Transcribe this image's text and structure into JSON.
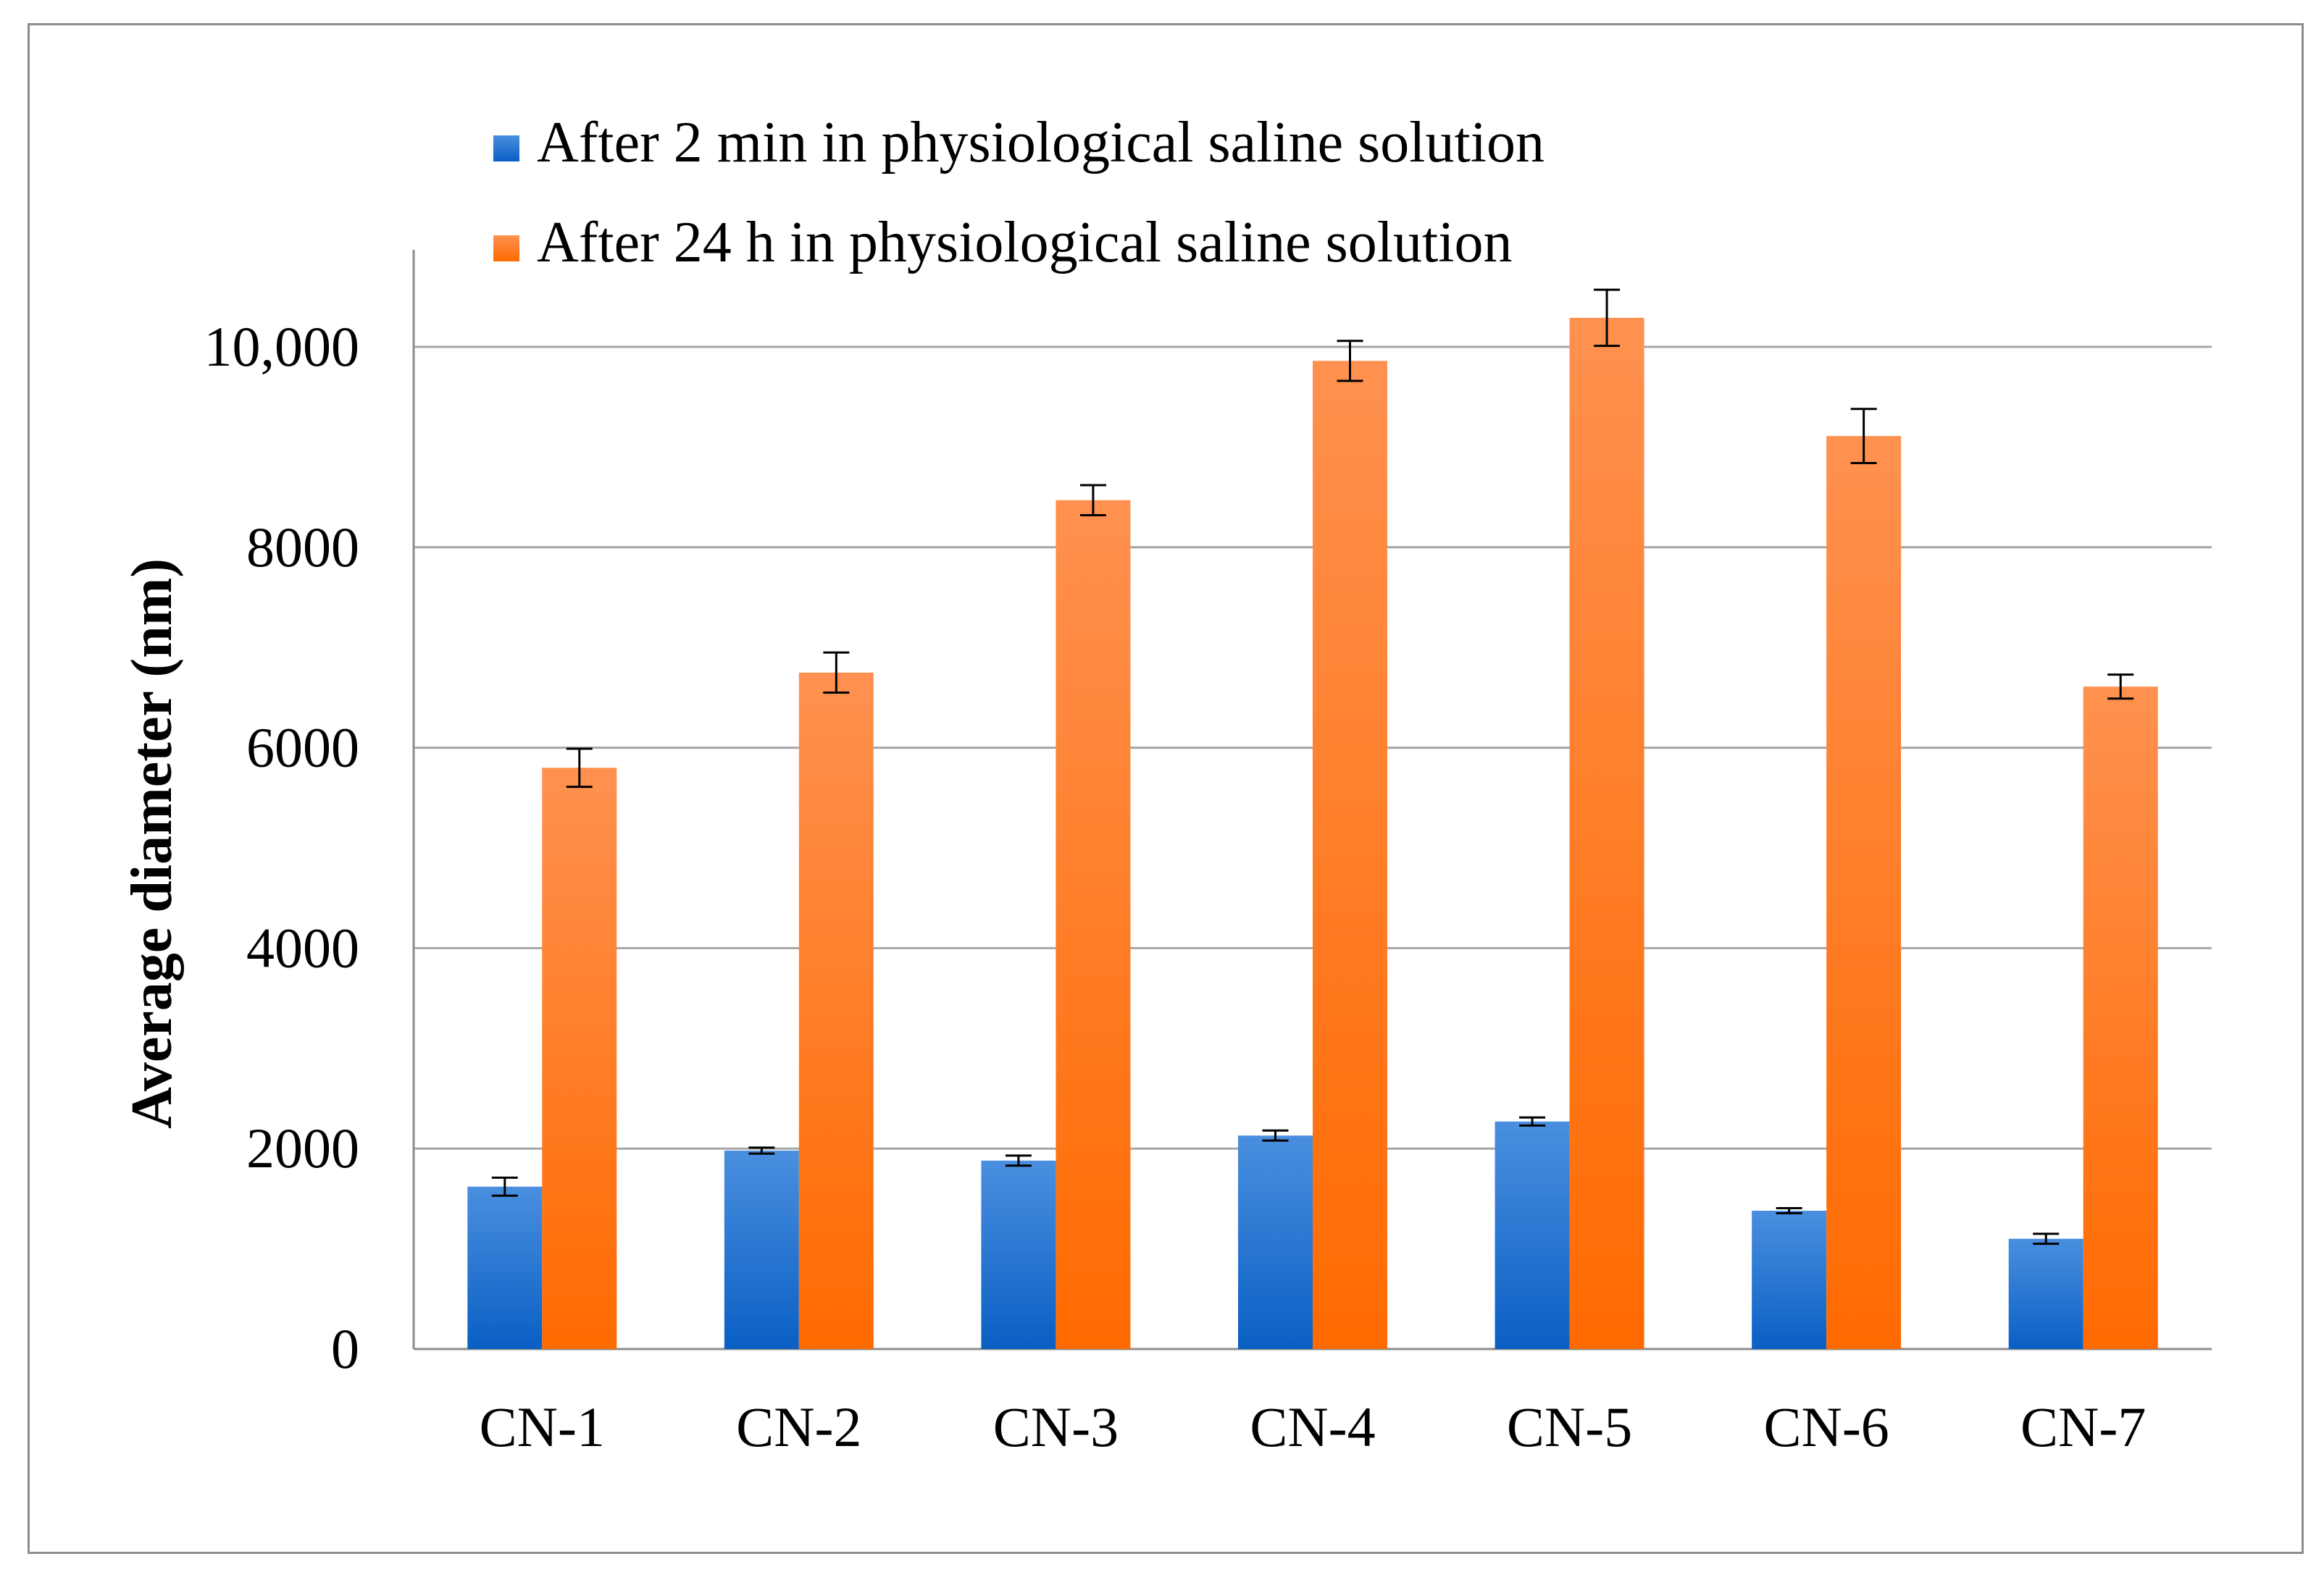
{
  "chart_data": {
    "type": "bar",
    "title": "",
    "xlabel": "",
    "ylabel": "Average diameter (nm)",
    "ylim": [
      0,
      11000
    ],
    "yticks": [
      0,
      2000,
      4000,
      6000,
      8000,
      10000
    ],
    "ytick_labels": [
      "0",
      "2000",
      "4000",
      "6000",
      "8000",
      "10,000"
    ],
    "grid": true,
    "legend_position": "top-left",
    "categories": [
      "CN-1",
      "CN-2",
      "CN-3",
      "CN-4",
      "CN-5",
      "CN-6",
      "CN-7"
    ],
    "series": [
      {
        "name": "After 2 min in physiological saline solution",
        "color": "#1f6fce",
        "values": [
          1620,
          1980,
          1880,
          2130,
          2270,
          1380,
          1100
        ],
        "errors": [
          90,
          30,
          50,
          50,
          40,
          25,
          50
        ]
      },
      {
        "name": "After 24 h in physiological saline solution",
        "color": "#ff7a1a",
        "values": [
          5800,
          6750,
          8470,
          9860,
          10290,
          9110,
          6610
        ],
        "errors": [
          190,
          200,
          150,
          200,
          280,
          270,
          120
        ]
      }
    ]
  }
}
